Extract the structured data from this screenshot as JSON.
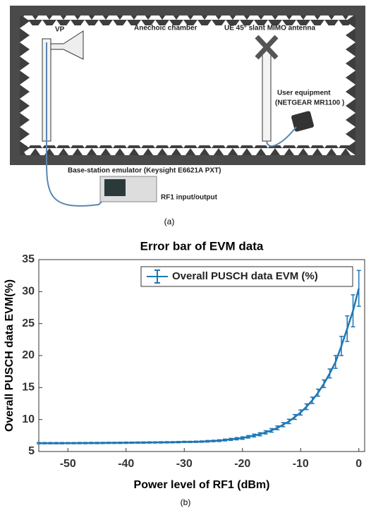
{
  "diagram": {
    "vp_label": "VP",
    "chamber_label": "Anechoic chamber",
    "ue_antenna_label": "UE 45° slant MIMO antenna",
    "ue_label": "User equipment",
    "ue_model_label": "(NETGEAR MR1100 )",
    "bs_label": "Base-station emulator (Keysight E6621A PXT)",
    "rf_label": "RF1 input/output",
    "caption": "(a)"
  },
  "chart_data": {
    "type": "errorbar",
    "title": "Error bar of EVM data",
    "x_label": "Power level of RF1 (dBm)",
    "y_label": "Overall PUSCH data EVM(%)",
    "caption": "(b)",
    "x": [
      -55,
      -54,
      -53,
      -52,
      -51,
      -50,
      -49,
      -48,
      -47,
      -46,
      -45,
      -44,
      -43,
      -42,
      -41,
      -40,
      -39,
      -38,
      -37,
      -36,
      -35,
      -34,
      -33,
      -32,
      -31,
      -30,
      -29,
      -28,
      -27,
      -26,
      -25,
      -24,
      -23,
      -22,
      -21,
      -20,
      -19,
      -18,
      -17,
      -16,
      -15,
      -14,
      -13,
      -12,
      -11,
      -10,
      -9,
      -8,
      -7,
      -6,
      -5,
      -4,
      -3,
      -2,
      -1,
      0
    ],
    "series": [
      {
        "name": "Overall PUSCH data EVM (%)",
        "color": "#1f77b4",
        "values": [
          6.3,
          6.3,
          6.3,
          6.3,
          6.3,
          6.31,
          6.31,
          6.32,
          6.32,
          6.33,
          6.33,
          6.34,
          6.35,
          6.35,
          6.36,
          6.37,
          6.38,
          6.39,
          6.4,
          6.41,
          6.42,
          6.43,
          6.44,
          6.45,
          6.47,
          6.5,
          6.5,
          6.52,
          6.55,
          6.6,
          6.65,
          6.7,
          6.8,
          6.9,
          7.0,
          7.1,
          7.3,
          7.5,
          7.7,
          8.0,
          8.3,
          8.7,
          9.2,
          9.7,
          10.4,
          11.1,
          12.0,
          13.0,
          14.2,
          15.6,
          17.2,
          19.0,
          21.5,
          24.2,
          27.0,
          30.5
        ],
        "errors": [
          0.1,
          0.1,
          0.1,
          0.1,
          0.1,
          0.1,
          0.1,
          0.1,
          0.1,
          0.1,
          0.1,
          0.1,
          0.1,
          0.1,
          0.1,
          0.1,
          0.1,
          0.1,
          0.1,
          0.1,
          0.1,
          0.1,
          0.1,
          0.1,
          0.1,
          0.1,
          0.1,
          0.1,
          0.1,
          0.12,
          0.12,
          0.14,
          0.15,
          0.16,
          0.18,
          0.2,
          0.2,
          0.22,
          0.24,
          0.26,
          0.28,
          0.3,
          0.32,
          0.35,
          0.38,
          0.4,
          0.45,
          0.5,
          0.55,
          0.6,
          0.7,
          1.0,
          1.5,
          2.0,
          2.5,
          2.8
        ]
      }
    ],
    "xlim": [
      -55,
      1
    ],
    "xticks": [
      -50,
      -40,
      -30,
      -20,
      -10,
      0
    ],
    "ylim": [
      5,
      35
    ],
    "yticks": [
      5,
      10,
      15,
      20,
      25,
      30,
      35
    ],
    "legend": "upper right"
  }
}
